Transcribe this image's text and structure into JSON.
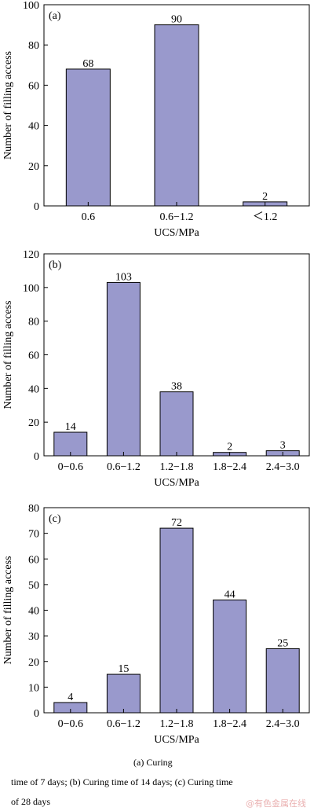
{
  "chart_data": [
    {
      "type": "bar",
      "panel_label": "(a)",
      "categories": [
        "0.6",
        "0.6−1.2",
        "＜1.2"
      ],
      "values": [
        68,
        90,
        2
      ],
      "xlabel": "UCS/MPa",
      "ylabel": "Number of filling access",
      "ylim": [
        0,
        100
      ],
      "yticks": [
        0,
        20,
        40,
        60,
        80,
        100
      ],
      "bar_color": "#9999cc"
    },
    {
      "type": "bar",
      "panel_label": "(b)",
      "categories": [
        "0−0.6",
        "0.6−1.2",
        "1.2−1.8",
        "1.8−2.4",
        "2.4−3.0"
      ],
      "values": [
        14,
        103,
        38,
        2,
        3
      ],
      "xlabel": "UCS/MPa",
      "ylabel": "Number of filling access",
      "ylim": [
        0,
        120
      ],
      "yticks": [
        0,
        20,
        40,
        60,
        80,
        100,
        120
      ],
      "bar_color": "#9999cc"
    },
    {
      "type": "bar",
      "panel_label": "(c)",
      "categories": [
        "0−0.6",
        "0.6−1.2",
        "1.2−1.8",
        "1.8−2.4",
        "2.4−3.0"
      ],
      "values": [
        4,
        15,
        72,
        44,
        25
      ],
      "xlabel": "UCS/MPa",
      "ylabel": "Number of filling access",
      "ylim": [
        0,
        80
      ],
      "yticks": [
        0,
        10,
        20,
        30,
        40,
        50,
        60,
        70,
        80
      ],
      "bar_color": "#9999cc"
    }
  ],
  "caption": {
    "line1": "(a) Curing",
    "line2": "time of 7 days; (b) Curing time of 14 days; (c) Curing time",
    "line3": "of 28 days"
  },
  "watermark": "@有色金属在线"
}
